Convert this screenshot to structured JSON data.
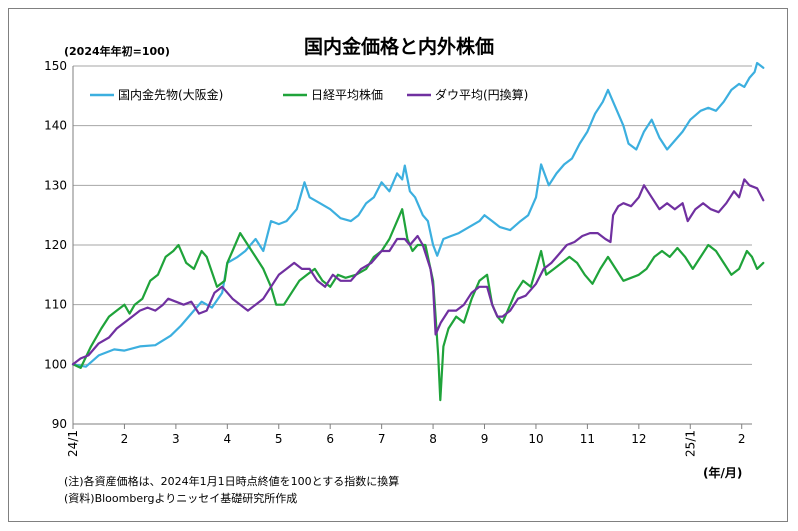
{
  "chart_data": {
    "type": "line",
    "title": "国内金価格と内外株価",
    "subtitle": "(2024年年初=100)",
    "unit_label": "(年/月)",
    "notes": [
      "(注)各資産価格は、2024年1月1日時点終値を100とする指数に換算",
      "(資料)Bloombergよりニッセイ基礎研究所作成"
    ],
    "ylim": [
      90,
      150
    ],
    "yticks": [
      "90",
      "100",
      "110",
      "120",
      "130",
      "140",
      "150"
    ],
    "xlim": [
      0,
      13.2
    ],
    "xticks": [
      {
        "x": 0,
        "label": "24/1",
        "rotated": true
      },
      {
        "x": 1,
        "label": "2"
      },
      {
        "x": 2,
        "label": "3"
      },
      {
        "x": 3,
        "label": "4"
      },
      {
        "x": 4,
        "label": "5"
      },
      {
        "x": 5,
        "label": "6"
      },
      {
        "x": 6,
        "label": "7"
      },
      {
        "x": 7,
        "label": "8"
      },
      {
        "x": 8,
        "label": "9"
      },
      {
        "x": 9,
        "label": "10"
      },
      {
        "x": 10,
        "label": "11"
      },
      {
        "x": 11,
        "label": "12"
      },
      {
        "x": 12,
        "label": "25/1",
        "rotated": true
      },
      {
        "x": 13,
        "label": "2"
      }
    ],
    "grid": true,
    "legend_position": "top-left",
    "series": [
      {
        "name": "国内金先物(大阪金)",
        "color": "#3CAFDF",
        "points": [
          [
            0,
            100
          ],
          [
            0.25,
            99.6
          ],
          [
            0.5,
            101.5
          ],
          [
            0.8,
            102.5
          ],
          [
            1.0,
            102.3
          ],
          [
            1.3,
            103
          ],
          [
            1.6,
            103.2
          ],
          [
            1.9,
            104.8
          ],
          [
            2.1,
            106.5
          ],
          [
            2.3,
            108.5
          ],
          [
            2.5,
            110.5
          ],
          [
            2.7,
            109.5
          ],
          [
            2.9,
            112
          ],
          [
            3.0,
            117
          ],
          [
            3.2,
            118
          ],
          [
            3.35,
            119
          ],
          [
            3.55,
            121
          ],
          [
            3.7,
            119
          ],
          [
            3.85,
            124
          ],
          [
            4.0,
            123.5
          ],
          [
            4.15,
            124
          ],
          [
            4.35,
            126
          ],
          [
            4.5,
            130.5
          ],
          [
            4.6,
            128
          ],
          [
            4.8,
            127
          ],
          [
            5.0,
            126
          ],
          [
            5.2,
            124.5
          ],
          [
            5.4,
            124
          ],
          [
            5.55,
            125
          ],
          [
            5.7,
            127
          ],
          [
            5.85,
            128
          ],
          [
            6.0,
            130.5
          ],
          [
            6.15,
            129
          ],
          [
            6.3,
            132
          ],
          [
            6.4,
            131
          ],
          [
            6.45,
            133.3
          ],
          [
            6.55,
            129
          ],
          [
            6.65,
            128
          ],
          [
            6.8,
            125
          ],
          [
            6.9,
            124
          ],
          [
            7.0,
            120
          ],
          [
            7.08,
            118.2
          ],
          [
            7.2,
            121
          ],
          [
            7.35,
            121.5
          ],
          [
            7.5,
            122
          ],
          [
            7.7,
            123
          ],
          [
            7.9,
            124
          ],
          [
            8.0,
            125
          ],
          [
            8.15,
            124
          ],
          [
            8.3,
            123
          ],
          [
            8.5,
            122.5
          ],
          [
            8.7,
            124
          ],
          [
            8.85,
            125
          ],
          [
            9.0,
            128
          ],
          [
            9.1,
            133.5
          ],
          [
            9.25,
            130
          ],
          [
            9.4,
            132
          ],
          [
            9.55,
            133.5
          ],
          [
            9.7,
            134.5
          ],
          [
            9.85,
            137
          ],
          [
            10.0,
            139
          ],
          [
            10.15,
            142
          ],
          [
            10.3,
            144
          ],
          [
            10.4,
            146
          ],
          [
            10.55,
            143
          ],
          [
            10.7,
            140
          ],
          [
            10.8,
            137
          ],
          [
            10.95,
            136
          ],
          [
            11.1,
            139
          ],
          [
            11.25,
            141
          ],
          [
            11.4,
            138
          ],
          [
            11.55,
            136
          ],
          [
            11.7,
            137.5
          ],
          [
            11.85,
            139
          ],
          [
            12.0,
            141
          ],
          [
            12.2,
            142.5
          ],
          [
            12.35,
            143
          ],
          [
            12.5,
            142.5
          ],
          [
            12.65,
            144
          ],
          [
            12.8,
            146
          ],
          [
            12.95,
            147
          ],
          [
            13.05,
            146.5
          ],
          [
            13.15,
            148
          ],
          [
            13.25,
            149
          ],
          [
            13.3,
            150.5
          ],
          [
            13.42,
            149.7
          ]
        ]
      },
      {
        "name": "日経平均株価",
        "color": "#1FA33A",
        "points": [
          [
            0,
            100
          ],
          [
            0.15,
            99.4
          ],
          [
            0.35,
            103
          ],
          [
            0.55,
            106
          ],
          [
            0.7,
            108
          ],
          [
            0.85,
            109
          ],
          [
            1.0,
            110
          ],
          [
            1.1,
            108.5
          ],
          [
            1.2,
            110
          ],
          [
            1.35,
            111
          ],
          [
            1.5,
            114
          ],
          [
            1.65,
            115
          ],
          [
            1.8,
            118
          ],
          [
            1.95,
            119
          ],
          [
            2.05,
            120
          ],
          [
            2.2,
            117
          ],
          [
            2.35,
            116
          ],
          [
            2.5,
            119
          ],
          [
            2.6,
            118
          ],
          [
            2.8,
            113
          ],
          [
            2.95,
            114
          ],
          [
            3.0,
            117
          ],
          [
            3.1,
            119
          ],
          [
            3.25,
            122
          ],
          [
            3.4,
            120
          ],
          [
            3.55,
            118
          ],
          [
            3.7,
            116
          ],
          [
            3.85,
            113
          ],
          [
            3.95,
            110
          ],
          [
            4.1,
            110
          ],
          [
            4.25,
            112
          ],
          [
            4.4,
            114
          ],
          [
            4.55,
            115
          ],
          [
            4.7,
            116
          ],
          [
            4.85,
            114
          ],
          [
            5.0,
            113
          ],
          [
            5.15,
            115
          ],
          [
            5.3,
            114.5
          ],
          [
            5.5,
            115
          ],
          [
            5.7,
            116
          ],
          [
            5.85,
            118
          ],
          [
            6.0,
            119
          ],
          [
            6.15,
            121
          ],
          [
            6.3,
            124
          ],
          [
            6.4,
            126
          ],
          [
            6.5,
            121
          ],
          [
            6.6,
            119
          ],
          [
            6.7,
            120
          ],
          [
            6.85,
            120
          ],
          [
            6.95,
            116
          ],
          [
            7.0,
            114
          ],
          [
            7.05,
            108
          ],
          [
            7.1,
            101.5
          ],
          [
            7.14,
            94
          ],
          [
            7.2,
            103
          ],
          [
            7.3,
            106
          ],
          [
            7.45,
            108
          ],
          [
            7.6,
            107
          ],
          [
            7.75,
            111
          ],
          [
            7.9,
            114
          ],
          [
            8.05,
            115
          ],
          [
            8.15,
            110
          ],
          [
            8.25,
            108
          ],
          [
            8.35,
            107
          ],
          [
            8.45,
            109
          ],
          [
            8.6,
            112
          ],
          [
            8.75,
            114
          ],
          [
            8.9,
            113
          ],
          [
            9.0,
            116
          ],
          [
            9.1,
            119
          ],
          [
            9.2,
            115
          ],
          [
            9.35,
            116
          ],
          [
            9.5,
            117
          ],
          [
            9.65,
            118
          ],
          [
            9.8,
            117
          ],
          [
            9.95,
            115
          ],
          [
            10.1,
            113.5
          ],
          [
            10.25,
            116
          ],
          [
            10.4,
            118
          ],
          [
            10.55,
            116
          ],
          [
            10.7,
            114
          ],
          [
            10.85,
            114.5
          ],
          [
            11.0,
            115
          ],
          [
            11.15,
            116
          ],
          [
            11.3,
            118
          ],
          [
            11.45,
            119
          ],
          [
            11.6,
            118
          ],
          [
            11.75,
            119.5
          ],
          [
            11.9,
            118
          ],
          [
            12.05,
            116
          ],
          [
            12.2,
            118
          ],
          [
            12.35,
            120
          ],
          [
            12.5,
            119
          ],
          [
            12.65,
            117
          ],
          [
            12.8,
            115
          ],
          [
            12.95,
            116
          ],
          [
            13.1,
            119
          ],
          [
            13.2,
            118
          ],
          [
            13.3,
            116
          ],
          [
            13.42,
            117
          ]
        ]
      },
      {
        "name": "ダウ平均(円換算)",
        "color": "#7030A0",
        "points": [
          [
            0,
            100
          ],
          [
            0.15,
            101
          ],
          [
            0.3,
            101.5
          ],
          [
            0.5,
            103.5
          ],
          [
            0.7,
            104.5
          ],
          [
            0.85,
            106
          ],
          [
            1.0,
            107
          ],
          [
            1.15,
            108
          ],
          [
            1.3,
            109
          ],
          [
            1.45,
            109.5
          ],
          [
            1.6,
            109
          ],
          [
            1.75,
            110
          ],
          [
            1.85,
            111
          ],
          [
            2.0,
            110.5
          ],
          [
            2.15,
            110
          ],
          [
            2.3,
            110.5
          ],
          [
            2.45,
            108.5
          ],
          [
            2.6,
            109
          ],
          [
            2.75,
            112
          ],
          [
            2.9,
            113
          ],
          [
            3.0,
            112
          ],
          [
            3.1,
            111
          ],
          [
            3.25,
            110
          ],
          [
            3.4,
            109
          ],
          [
            3.55,
            110
          ],
          [
            3.7,
            111
          ],
          [
            3.85,
            113
          ],
          [
            4.0,
            115
          ],
          [
            4.15,
            116
          ],
          [
            4.3,
            117
          ],
          [
            4.45,
            116
          ],
          [
            4.6,
            116
          ],
          [
            4.75,
            114
          ],
          [
            4.9,
            113
          ],
          [
            5.05,
            115
          ],
          [
            5.2,
            114
          ],
          [
            5.4,
            114
          ],
          [
            5.6,
            116
          ],
          [
            5.8,
            117
          ],
          [
            6.0,
            119
          ],
          [
            6.15,
            119
          ],
          [
            6.3,
            121
          ],
          [
            6.45,
            121
          ],
          [
            6.55,
            120
          ],
          [
            6.7,
            121.5
          ],
          [
            6.8,
            120
          ],
          [
            6.95,
            116
          ],
          [
            7.0,
            113
          ],
          [
            7.05,
            105
          ],
          [
            7.15,
            107
          ],
          [
            7.3,
            109
          ],
          [
            7.45,
            109
          ],
          [
            7.6,
            110
          ],
          [
            7.75,
            112
          ],
          [
            7.9,
            113
          ],
          [
            8.05,
            113
          ],
          [
            8.15,
            110
          ],
          [
            8.25,
            108
          ],
          [
            8.35,
            108
          ],
          [
            8.5,
            109
          ],
          [
            8.65,
            111
          ],
          [
            8.8,
            111.5
          ],
          [
            9.0,
            113.5
          ],
          [
            9.15,
            116
          ],
          [
            9.3,
            117
          ],
          [
            9.45,
            118.5
          ],
          [
            9.6,
            120
          ],
          [
            9.75,
            120.5
          ],
          [
            9.9,
            121.5
          ],
          [
            10.05,
            122
          ],
          [
            10.2,
            122
          ],
          [
            10.35,
            121
          ],
          [
            10.45,
            120.5
          ],
          [
            10.5,
            125
          ],
          [
            10.6,
            126.5
          ],
          [
            10.7,
            127
          ],
          [
            10.85,
            126.5
          ],
          [
            11.0,
            128
          ],
          [
            11.1,
            130
          ],
          [
            11.25,
            128
          ],
          [
            11.4,
            126
          ],
          [
            11.55,
            127
          ],
          [
            11.7,
            126
          ],
          [
            11.85,
            127
          ],
          [
            11.95,
            124
          ],
          [
            12.1,
            126
          ],
          [
            12.25,
            127
          ],
          [
            12.4,
            126
          ],
          [
            12.55,
            125.5
          ],
          [
            12.7,
            127
          ],
          [
            12.85,
            129
          ],
          [
            12.95,
            128
          ],
          [
            13.05,
            131
          ],
          [
            13.15,
            130
          ],
          [
            13.3,
            129.5
          ],
          [
            13.42,
            127.5
          ]
        ]
      }
    ]
  }
}
